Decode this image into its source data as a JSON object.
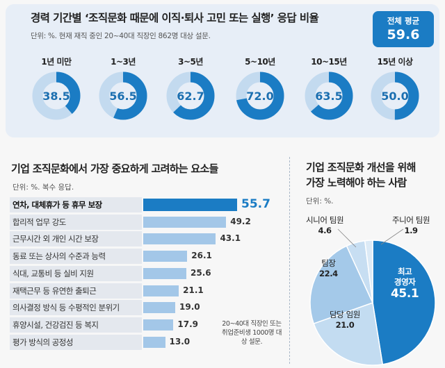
{
  "top_panel": {
    "title": "경력 기간별 ‘조직문화 때문에 이직·퇴사 고민 또는 실행’ 응답 비율",
    "unit": "단위: %. 현재 재직 중인 20~40대 직장인 862명 대상 설문.",
    "average_label": "전체 평균",
    "average_value": "59.6"
  },
  "left_panel": {
    "title": "기업 조직문화에서 가장 중요하게 고려하는 요소들",
    "unit": "단위: %. 복수 응답.",
    "note": "20~40대 직장인 또는 취업준비생 1000명 대상 설문."
  },
  "right_panel": {
    "title_line1": "기업 조직문화 개선을 위해",
    "title_line2": "가장 노력해야 하는 사람",
    "unit": "단위: %."
  },
  "chart_data": [
    {
      "type": "donut",
      "title": "경력 기간별 ‘조직문화 때문에 이직·퇴사 고민 또는 실행’ 응답 비율",
      "categories": [
        "1년 미만",
        "1~3년",
        "3~5년",
        "5~10년",
        "10~15년",
        "15년 이상"
      ],
      "values": [
        38.5,
        56.5,
        62.7,
        72.0,
        63.5,
        50.0
      ],
      "value_labels": [
        "38.5",
        "56.5",
        "62.7",
        "72.0",
        "63.5",
        "50.0"
      ],
      "colors": {
        "filled": "#1b7cc4",
        "empty": "#c3daef"
      }
    },
    {
      "type": "bar",
      "orientation": "horizontal",
      "title": "기업 조직문화에서 가장 중요하게 고려하는 요소들",
      "categories": [
        "연차, 대체휴가 등 휴무 보장",
        "합리적 업무 강도",
        "근무시간 외 개인 시간 보장",
        "동료 또는 상사의 수준과 능력",
        "식대, 교통비 등 실비 지원",
        "재택근무 등 유연한 출퇴근",
        "의사결정 방식 등 수평적인 분위기",
        "휴양시설, 건강검진 등 복지",
        "평가 방식의 공정성"
      ],
      "values": [
        55.7,
        49.2,
        43.1,
        26.1,
        25.6,
        21.1,
        19.0,
        17.9,
        13.0
      ],
      "value_labels": [
        "55.7",
        "49.2",
        "43.1",
        "26.1",
        "25.6",
        "21.1",
        "19.0",
        "17.9",
        "13.0"
      ],
      "colors": {
        "highlight": "#1b7cc4",
        "normal": "#a3c7e8"
      }
    },
    {
      "type": "pie",
      "title": "기업 조직문화 개선을 위해 가장 노력해야 하는 사람",
      "slices": [
        {
          "name": "최고 경영자",
          "name_line1": "최고",
          "name_line2": "경영자",
          "value": 45.1,
          "label": "45.1",
          "color": "#1b7cc4"
        },
        {
          "name": "담당 임원",
          "value": 21.0,
          "label": "21.0",
          "color": "#c3dcf1"
        },
        {
          "name": "팀장",
          "value": 22.4,
          "label": "22.4",
          "color": "#a4c9e9"
        },
        {
          "name": "시니어 팀원",
          "value": 4.6,
          "label": "4.6",
          "color": "#c7def2"
        },
        {
          "name": "주니어 팀원",
          "value": 1.9,
          "label": "1.9",
          "color": "#dceaf6"
        }
      ]
    }
  ]
}
